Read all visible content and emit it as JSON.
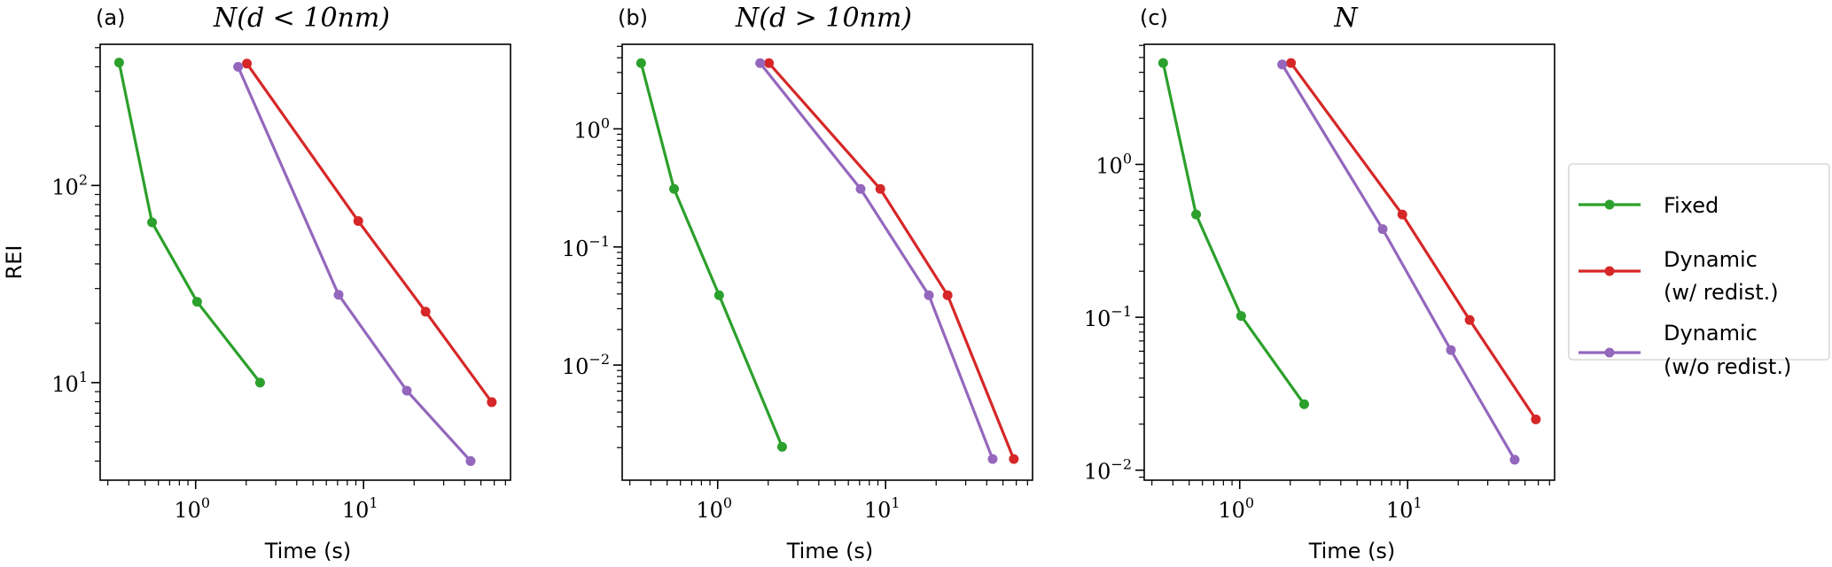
{
  "chart_data": [
    {
      "type": "line",
      "panel_label": "(a)",
      "title": "N(d < 10nm)",
      "xlabel": "Time (s)",
      "ylabel": "REI",
      "xscale": "log",
      "yscale": "log",
      "xlim": [
        0.27,
        75
      ],
      "ylim": [
        3.2,
        520
      ],
      "xticks": [
        {
          "base": "10",
          "exp": "0",
          "value": 1
        },
        {
          "base": "10",
          "exp": "1",
          "value": 10
        }
      ],
      "yticks": [
        {
          "base": "10",
          "exp": "1",
          "value": 10
        },
        {
          "base": "10",
          "exp": "2",
          "value": 100
        }
      ],
      "series": [
        {
          "name": "Fixed",
          "color": "#2ca02c",
          "x": [
            0.35,
            0.55,
            1.02,
            2.42
          ],
          "y": [
            420,
            65,
            25.7,
            10
          ]
        },
        {
          "name": "Dynamic (w/ redist.)",
          "color": "#d62728",
          "x": [
            2.02,
            9.3,
            23.4,
            58
          ],
          "y": [
            415,
            66,
            22.9,
            7.96
          ]
        },
        {
          "name": "Dynamic (w/o redist.)",
          "color": "#9467bd",
          "x": [
            1.79,
            7.1,
            18.1,
            43.4
          ],
          "y": [
            400,
            27.9,
            9.1,
            4.0
          ]
        }
      ]
    },
    {
      "type": "line",
      "panel_label": "(b)",
      "title": "N(d > 10nm)",
      "xlabel": "Time (s)",
      "ylabel": "",
      "xscale": "log",
      "yscale": "log",
      "xlim": [
        0.27,
        75
      ],
      "ylim": [
        0.00106,
        5.2
      ],
      "xticks": [
        {
          "base": "10",
          "exp": "0",
          "value": 1
        },
        {
          "base": "10",
          "exp": "1",
          "value": 10
        }
      ],
      "yticks": [
        {
          "base": "10",
          "exp": "−2",
          "value": 0.01
        },
        {
          "base": "10",
          "exp": "−1",
          "value": 0.1
        },
        {
          "base": "10",
          "exp": "0",
          "value": 1
        }
      ],
      "series": [
        {
          "name": "Fixed",
          "color": "#2ca02c",
          "x": [
            0.35,
            0.55,
            1.02,
            2.42
          ],
          "y": [
            3.6,
            0.31,
            0.039,
            0.00203
          ]
        },
        {
          "name": "Dynamic (w/ redist.)",
          "color": "#d62728",
          "x": [
            2.02,
            9.3,
            23.4,
            58
          ],
          "y": [
            3.6,
            0.31,
            0.039,
            0.0016
          ]
        },
        {
          "name": "Dynamic (w/o redist.)",
          "color": "#9467bd",
          "x": [
            1.79,
            7.1,
            18.1,
            43.4
          ],
          "y": [
            3.6,
            0.31,
            0.039,
            0.0016
          ]
        }
      ]
    },
    {
      "type": "line",
      "panel_label": "(c)",
      "title": "N",
      "xlabel": "Time (s)",
      "ylabel": "",
      "xscale": "log",
      "yscale": "log",
      "xlim": [
        0.27,
        75
      ],
      "ylim": [
        0.0086,
        6.1
      ],
      "xticks": [
        {
          "base": "10",
          "exp": "0",
          "value": 1
        },
        {
          "base": "10",
          "exp": "1",
          "value": 10
        }
      ],
      "yticks": [
        {
          "base": "10",
          "exp": "−2",
          "value": 0.01
        },
        {
          "base": "10",
          "exp": "−1",
          "value": 0.1
        },
        {
          "base": "10",
          "exp": "0",
          "value": 1
        }
      ],
      "series": [
        {
          "name": "Fixed",
          "color": "#2ca02c",
          "x": [
            0.35,
            0.55,
            1.02,
            2.42
          ],
          "y": [
            4.6,
            0.47,
            0.102,
            0.027
          ]
        },
        {
          "name": "Dynamic (w/ redist.)",
          "color": "#d62728",
          "x": [
            2.02,
            9.3,
            23.4,
            58
          ],
          "y": [
            4.6,
            0.47,
            0.096,
            0.0215
          ]
        },
        {
          "name": "Dynamic (w/o redist.)",
          "color": "#9467bd",
          "x": [
            1.79,
            7.1,
            18.1,
            43.4
          ],
          "y": [
            4.5,
            0.377,
            0.061,
            0.0117
          ]
        }
      ]
    }
  ],
  "legend": {
    "placement": "right",
    "items": [
      {
        "lines": [
          "Fixed"
        ],
        "color": "#2ca02c"
      },
      {
        "lines": [
          "Dynamic",
          "(w/ redist.)"
        ],
        "color": "#d62728"
      },
      {
        "lines": [
          "Dynamic",
          "(w/o redist.)"
        ],
        "color": "#9467bd"
      }
    ]
  }
}
